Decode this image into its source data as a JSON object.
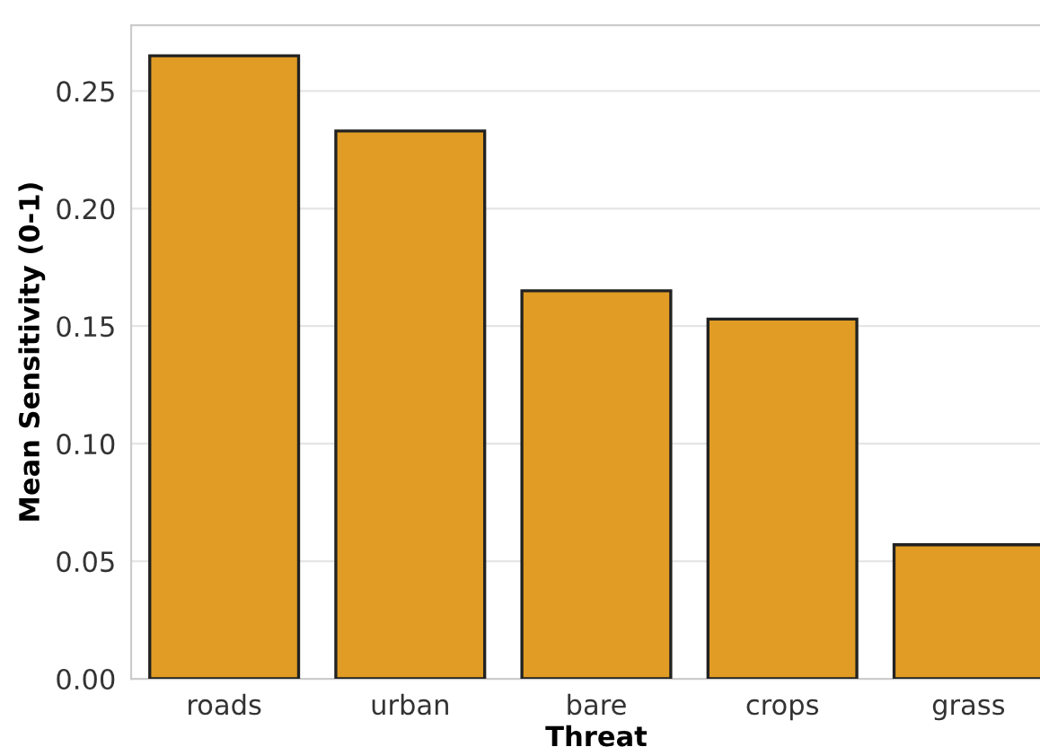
{
  "chart_data": {
    "type": "bar",
    "xlabel": "Threat",
    "ylabel": "Mean Sensitivity (0-1)",
    "categories": [
      "roads",
      "urban",
      "bare",
      "crops",
      "grass"
    ],
    "values": [
      0.265,
      0.233,
      0.165,
      0.153,
      0.057
    ],
    "color": "#e09c24",
    "ylim": [
      0,
      0.278
    ],
    "yticks": [
      {
        "value": 0,
        "label": "0.00"
      },
      {
        "value": 0.05,
        "label": "0.05"
      },
      {
        "value": 0.1,
        "label": "0.10"
      },
      {
        "value": 0.15,
        "label": "0.15"
      },
      {
        "value": 0.2,
        "label": "0.20"
      },
      {
        "value": 0.25,
        "label": "0.25"
      }
    ],
    "grid": "y"
  }
}
